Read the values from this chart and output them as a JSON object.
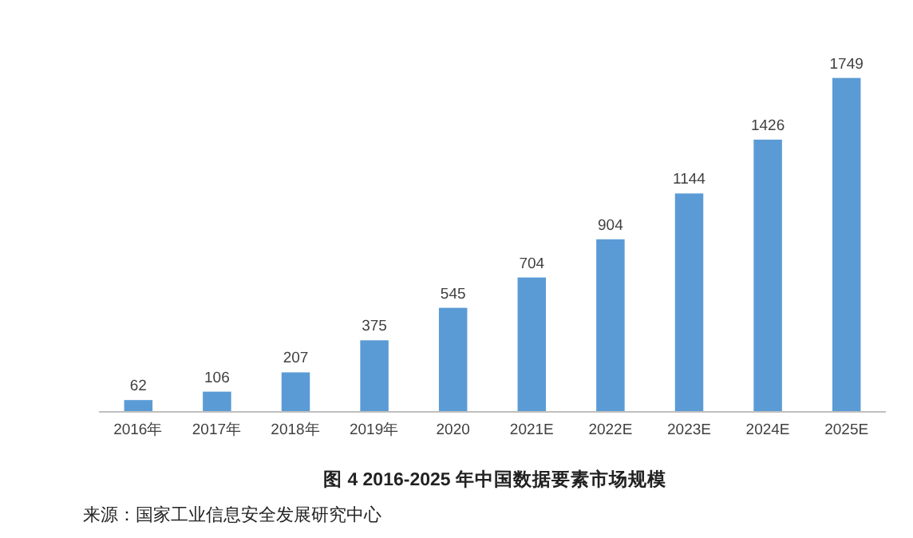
{
  "chart_data": {
    "type": "bar",
    "title": "图 4 2016-2025 年中国数据要素市场规模",
    "annotations": [
      "来源：国家工业信息安全发展研究中心"
    ],
    "categories": [
      "2016年",
      "2017年",
      "2018年",
      "2019年",
      "2020",
      "2021E",
      "2022E",
      "2023E",
      "2024E",
      "2025E"
    ],
    "values": [
      62,
      106,
      207,
      375,
      545,
      704,
      904,
      1144,
      1426,
      1749
    ],
    "color": "#5b9bd5",
    "data_labels": true
  }
}
